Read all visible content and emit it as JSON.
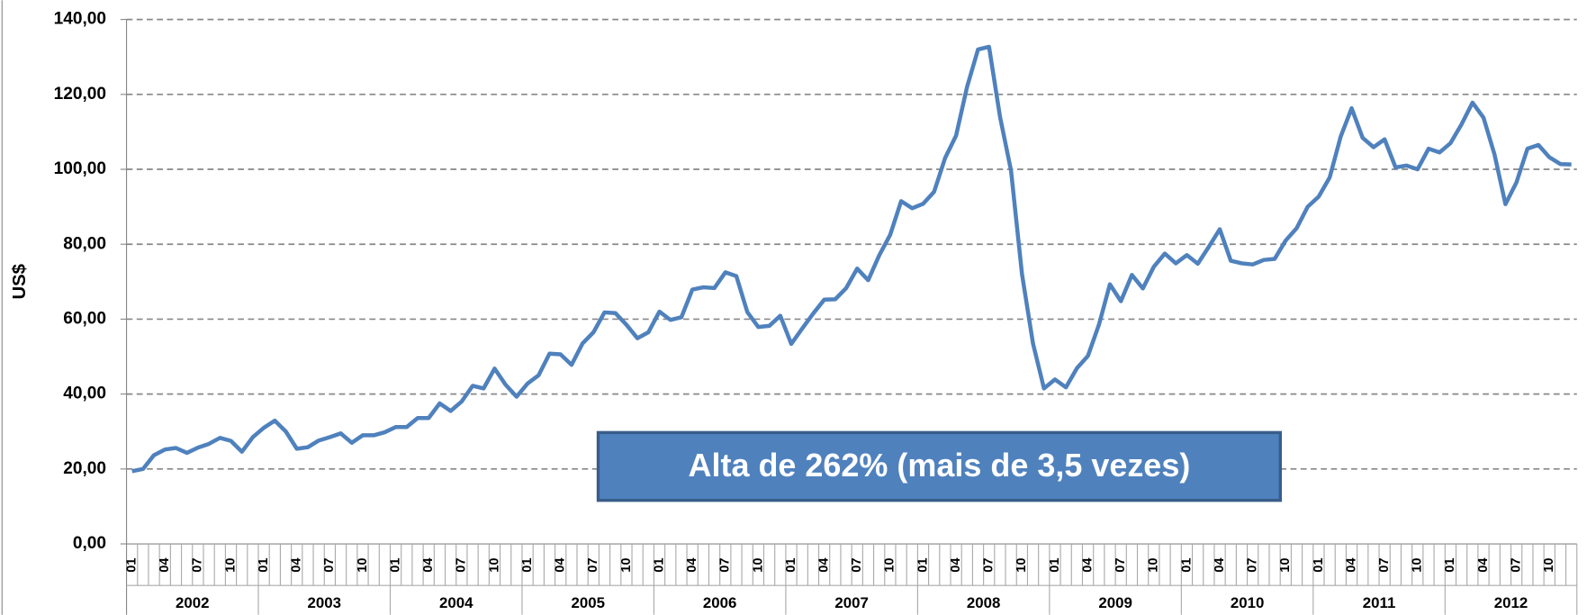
{
  "chart_data": {
    "type": "line",
    "y_label": "US$",
    "annotation": "Alta de 262% (mais de 3,5 vezes)",
    "categories": [
      "01",
      null,
      null,
      "04",
      null,
      null,
      "07",
      null,
      null,
      "10",
      null,
      null,
      "01",
      null,
      null,
      "04",
      null,
      null,
      "07",
      null,
      null,
      "10",
      null,
      null,
      "01",
      null,
      null,
      "04",
      null,
      null,
      "07",
      null,
      null,
      "10",
      null,
      null,
      "01",
      null,
      null,
      "04",
      null,
      null,
      "07",
      null,
      null,
      "10",
      null,
      null,
      "01",
      null,
      null,
      "04",
      null,
      null,
      "07",
      null,
      null,
      "10",
      null,
      null,
      "01",
      null,
      null,
      "04",
      null,
      null,
      "07",
      null,
      null,
      "10",
      null,
      null,
      "01",
      null,
      null,
      "04",
      null,
      null,
      "07",
      null,
      null,
      "10",
      null,
      null,
      "01",
      null,
      null,
      "04",
      null,
      null,
      "07",
      null,
      null,
      "10",
      null,
      null,
      "01",
      null,
      null,
      "04",
      null,
      null,
      "07",
      null,
      null,
      "10",
      null,
      null,
      "01",
      null,
      null,
      "04",
      null,
      null,
      "07",
      null,
      null,
      "10",
      null,
      null,
      "01",
      null,
      null,
      "04",
      null,
      null,
      "07",
      null,
      null,
      "10",
      null,
      null
    ],
    "years": [
      "2002",
      "2003",
      "2004",
      "2005",
      "2006",
      "2007",
      "2008",
      "2009",
      "2010",
      "2011",
      "2012"
    ],
    "series": [
      {
        "color": "#4f81bd",
        "values": [
          19.4,
          20.0,
          23.7,
          25.2,
          25.6,
          24.3,
          25.7,
          26.7,
          28.3,
          27.5,
          24.6,
          28.5,
          31.0,
          32.9,
          30.0,
          25.4,
          25.8,
          27.6,
          28.5,
          29.5,
          27.0,
          29.0,
          29.0,
          29.8,
          31.2,
          31.2,
          33.6,
          33.6,
          37.5,
          35.5,
          38.0,
          42.2,
          41.5,
          46.8,
          42.5,
          39.3,
          42.8,
          45.0,
          50.8,
          50.6,
          47.8,
          53.5,
          56.5,
          61.8,
          61.6,
          58.5,
          54.9,
          56.5,
          62.0,
          59.8,
          60.5,
          67.9,
          68.5,
          68.3,
          72.5,
          71.5,
          61.9,
          57.9,
          58.2,
          60.9,
          53.4,
          57.5,
          61.5,
          65.2,
          65.3,
          68.3,
          73.5,
          70.4,
          77.0,
          82.5,
          91.5,
          89.6,
          90.8,
          94.0,
          103.0,
          109.0,
          122.0,
          132.0,
          132.7,
          114.0,
          99.7,
          72.0,
          53.5,
          41.5,
          43.9,
          41.8,
          46.9,
          50.2,
          58.5,
          69.3,
          64.8,
          71.8,
          68.2,
          74.0,
          77.5,
          74.9,
          77.1,
          74.8,
          79.3,
          84.0,
          75.6,
          74.9,
          74.6,
          75.8,
          76.1,
          81.0,
          84.3,
          90.0,
          92.7,
          97.8,
          108.7,
          116.3,
          108.4,
          105.9,
          108.0,
          100.5,
          101.0,
          100.0,
          105.5,
          104.5,
          107.0,
          112.0,
          117.8,
          113.8,
          104.0,
          90.7,
          96.5,
          105.5,
          106.5,
          103.2,
          101.4,
          101.3
        ]
      }
    ],
    "ylim": [
      0,
      140
    ],
    "yticks": [
      {
        "value": 0,
        "label": "0,00"
      },
      {
        "value": 20,
        "label": "20,00"
      },
      {
        "value": 40,
        "label": "40,00"
      },
      {
        "value": 60,
        "label": "60,00"
      },
      {
        "value": 80,
        "label": "80,00"
      },
      {
        "value": 100,
        "label": "100,00"
      },
      {
        "value": 120,
        "label": "120,00"
      },
      {
        "value": 140,
        "label": "140,00"
      }
    ],
    "grid": true
  }
}
